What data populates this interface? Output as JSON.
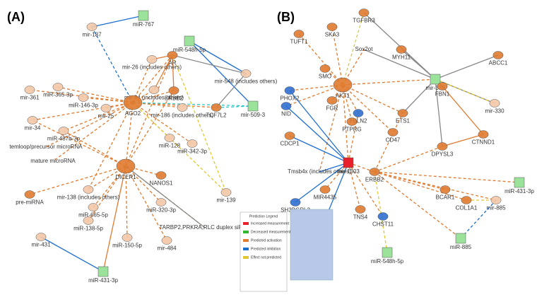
{
  "panel_a": {
    "label": "(A)",
    "nodes": [
      {
        "label": "mir-187"
      },
      {
        "label": "miR-767"
      },
      {
        "label": "miR-548h-5p"
      },
      {
        "label": "mir-26 (includes others)"
      },
      {
        "label": "AR"
      },
      {
        "label": "miR-365-3p"
      },
      {
        "label": "mir-24 (includes others)"
      },
      {
        "label": "mir-548 (includes others)"
      },
      {
        "label": "mir-361"
      },
      {
        "label": "miR-146-3p"
      },
      {
        "label": "ERBB2"
      },
      {
        "label": "mir-509-3"
      },
      {
        "label": "mir-34"
      },
      {
        "label": "miR-487b-3p"
      },
      {
        "label": "mir-25"
      },
      {
        "label": "AGO2"
      },
      {
        "label": "mir-186 (includes others)"
      },
      {
        "label": "TCF7L2"
      },
      {
        "label": "temloop/precursor microRNA"
      },
      {
        "label": "mature microRNA"
      },
      {
        "label": "DICER1"
      },
      {
        "label": "miR-128"
      },
      {
        "label": "miR-342-3p"
      },
      {
        "label": "pre-miRNA"
      },
      {
        "label": "mir-138 (includes others)"
      },
      {
        "label": "NANOS1"
      },
      {
        "label": "mir-139"
      },
      {
        "label": "miR-320-3p"
      },
      {
        "label": "miR-665-5p"
      },
      {
        "label": "miR-138-5p"
      },
      {
        "label": "miR-150-5p"
      },
      {
        "label": "TARBP2,PRKRA,RLC duplex siRNA"
      },
      {
        "label": "mir-484"
      },
      {
        "label": "mir-431"
      },
      {
        "label": "miR-431-3p"
      }
    ]
  },
  "panel_b": {
    "label": "(B)",
    "nodes": [
      {
        "label": "TGFBR3"
      },
      {
        "label": "SKA3"
      },
      {
        "label": "TUFT1"
      },
      {
        "label": "Sox2ot"
      },
      {
        "label": "MYH11"
      },
      {
        "label": "ABCC1"
      },
      {
        "label": "SMO"
      },
      {
        "label": "AKT1"
      },
      {
        "label": "mir-378"
      },
      {
        "label": "FBN1"
      },
      {
        "label": "PHOX2"
      },
      {
        "label": "FGR"
      },
      {
        "label": "FBLN2"
      },
      {
        "label": "ETS1"
      },
      {
        "label": "NID"
      },
      {
        "label": "mir-330"
      },
      {
        "label": "PTPRG"
      },
      {
        "label": "CDCP1"
      },
      {
        "label": "CD47"
      },
      {
        "label": "CTNND1"
      },
      {
        "label": "DPYSL3"
      },
      {
        "label": "mir-1303"
      },
      {
        "label": "Tmsb4x (includes others)"
      },
      {
        "label": "ERBB2"
      },
      {
        "label": "miR-431-3p"
      },
      {
        "label": "SH3BGRL3"
      },
      {
        "label": "MIR4435"
      },
      {
        "label": "BCAR1"
      },
      {
        "label": "COL1A1"
      },
      {
        "label": "mir-885"
      },
      {
        "label": "TNS4"
      },
      {
        "label": "CHST11"
      },
      {
        "label": "SERF1"
      },
      {
        "label": "miR-885"
      },
      {
        "label": "miR-548h-5p"
      }
    ]
  },
  "legend": {
    "title": "Prediction Legend",
    "items": [
      "Increased measurement",
      "Decreased measurement",
      "Predicted activation",
      "Predicted inhibition",
      "Effect not predicted"
    ]
  }
}
